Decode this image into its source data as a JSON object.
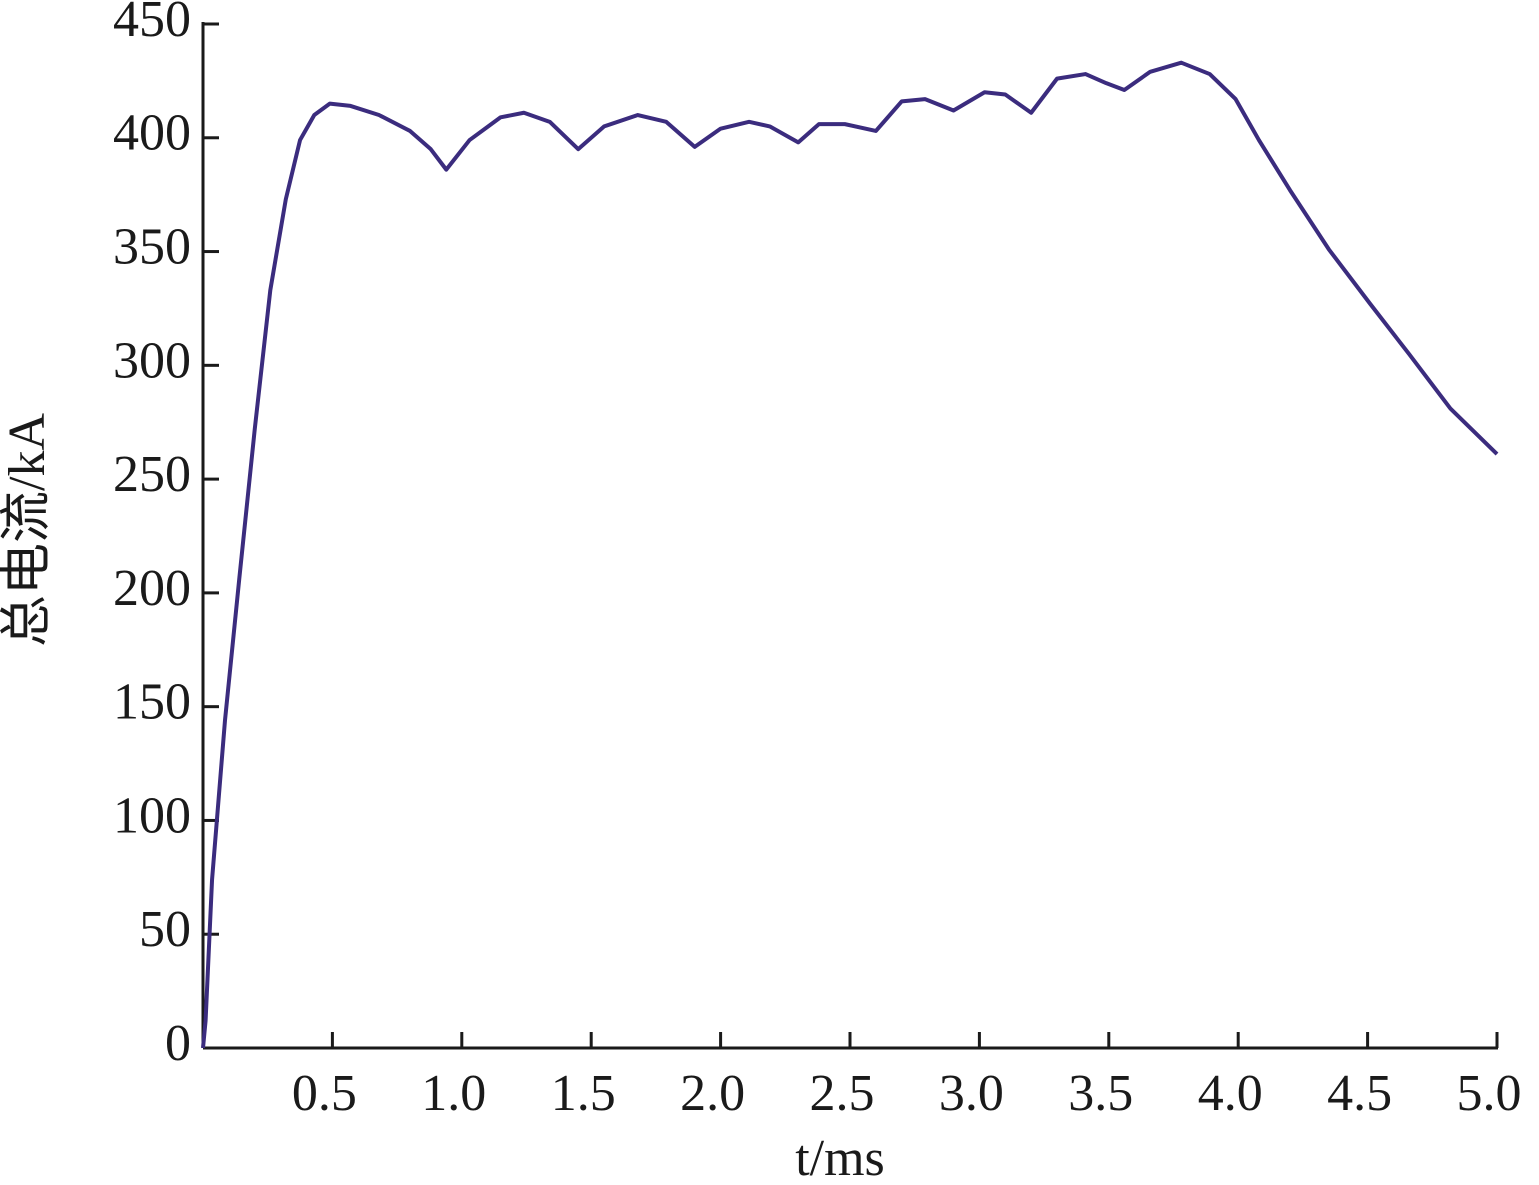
{
  "chart_data": {
    "type": "line",
    "xlabel": "t/ms",
    "ylabel": "总电流/kA",
    "xlim": [
      0,
      5
    ],
    "ylim": [
      0,
      450
    ],
    "xticks": [
      {
        "value": 0.5,
        "label": "0.5"
      },
      {
        "value": 1,
        "label": "1.0"
      },
      {
        "value": 1.5,
        "label": "1.5"
      },
      {
        "value": 2,
        "label": "2.0"
      },
      {
        "value": 2.5,
        "label": "2.5"
      },
      {
        "value": 3,
        "label": "3.0"
      },
      {
        "value": 3.5,
        "label": "3.5"
      },
      {
        "value": 4,
        "label": "4.0"
      },
      {
        "value": 4.5,
        "label": "4.5"
      },
      {
        "value": 5,
        "label": "5.0"
      }
    ],
    "yticks": [
      0,
      50,
      100,
      150,
      200,
      250,
      300,
      350,
      400,
      450
    ],
    "series": [
      {
        "color": "#3b2c7e",
        "x": [
          0,
          0.01,
          0.035,
          0.085,
          0.14,
          0.2,
          0.26,
          0.32,
          0.375,
          0.43,
          0.49,
          0.57,
          0.68,
          0.8,
          0.88,
          0.94,
          1.03,
          1.15,
          1.24,
          1.34,
          1.45,
          1.55,
          1.68,
          1.79,
          1.9,
          2.0,
          2.11,
          2.19,
          2.3,
          2.38,
          2.48,
          2.6,
          2.7,
          2.79,
          2.9,
          3.02,
          3.1,
          3.2,
          3.3,
          3.41,
          3.49,
          3.56,
          3.66,
          3.78,
          3.89,
          3.99,
          4.08,
          4.2,
          4.35,
          4.51,
          4.66,
          4.82,
          5.0
        ],
        "values": [
          0,
          12,
          74,
          144,
          206,
          272,
          333,
          373,
          399,
          410,
          415,
          414,
          410,
          403,
          395,
          386,
          399,
          409,
          411,
          407,
          395,
          405,
          410,
          407,
          396,
          404,
          407,
          405,
          398,
          406,
          406,
          403,
          416,
          417,
          412,
          420,
          419,
          411,
          426,
          428,
          424,
          421,
          429,
          433,
          428,
          417,
          399,
          377,
          351,
          327,
          305,
          281,
          261
        ]
      }
    ]
  }
}
